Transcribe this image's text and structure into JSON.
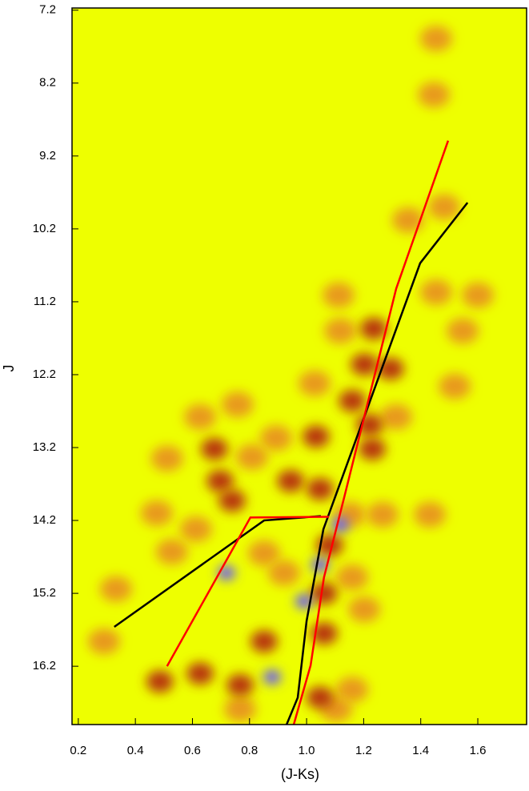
{
  "chart_data": {
    "type": "line",
    "x_label": "(J-Ks)",
    "y_label": "J",
    "xlim": [
      0.178,
      1.771
    ],
    "ylim": [
      17.0,
      7.17
    ],
    "xticks": [
      0.2,
      0.4,
      0.6,
      0.8,
      {
        "value": 1,
        "label": "1.0"
      },
      1.2,
      1.4,
      1.6
    ],
    "yticks": [
      7.2,
      8.2,
      9.2,
      10.2,
      11.2,
      12.2,
      13.2,
      14.2,
      15.2,
      16.2
    ],
    "background": "#eeff00",
    "density": {
      "x": [
        1.454,
        1.446,
        1.482,
        1.356,
        1.112,
        1.454,
        1.6,
        1.235,
        1.118,
        1.547,
        1.202,
        1.294,
        1.519,
        1.028,
        1.16,
        0.758,
        0.627,
        1.221,
        1.314,
        1.23,
        0.893,
        1.033,
        0.677,
        0.511,
        0.809,
        0.697,
        0.944,
        1.047,
        0.739,
        0.475,
        1.151,
        1.266,
        1.432,
        1.118,
        1.081,
        0.612,
        0.528,
        0.851,
        0.719,
        1.047,
        0.921,
        1.16,
        0.332,
        0.991,
        1.061,
        1.202,
        0.29,
        0.851,
        1.061,
        0.879,
        0.627,
        0.486,
        0.767,
        1.16,
        1.047,
        0.767,
        1.104
      ],
      "y": [
        7.59,
        8.36,
        9.9,
        10.08,
        11.11,
        11.07,
        11.11,
        11.57,
        11.6,
        11.6,
        12.06,
        12.12,
        12.36,
        12.32,
        12.56,
        12.61,
        12.78,
        12.89,
        12.78,
        13.22,
        13.07,
        13.05,
        13.22,
        13.35,
        13.33,
        13.66,
        13.66,
        13.77,
        13.93,
        14.1,
        14.12,
        14.12,
        14.12,
        14.26,
        14.54,
        14.32,
        14.63,
        14.65,
        14.92,
        14.81,
        14.92,
        14.98,
        15.14,
        15.31,
        15.2,
        15.42,
        15.86,
        15.86,
        15.75,
        16.35,
        16.3,
        16.41,
        16.46,
        16.52,
        16.63,
        16.79,
        16.79
      ],
      "level": [
        1,
        1,
        1,
        1,
        1,
        1,
        1,
        2,
        1,
        1,
        2,
        2,
        1,
        1,
        2,
        1,
        1,
        2,
        1,
        2,
        1,
        2,
        2,
        1,
        1,
        2,
        2,
        2,
        2,
        1,
        1,
        1,
        1,
        3,
        2,
        1,
        1,
        1,
        3,
        3,
        1,
        1,
        1,
        3,
        2,
        1,
        1,
        2,
        2,
        3,
        2,
        2,
        2,
        1,
        2,
        1,
        1
      ],
      "colors": [
        "#e89a1e",
        "#b8380e",
        "#6655ff"
      ]
    },
    "series": [
      {
        "color": "#000000",
        "x": [
          0.93,
          0.969,
          1.0,
          1.059,
          1.398,
          1.564,
          null,
          0.326,
          0.851,
          1.05
        ],
        "values": [
          17.0,
          16.63,
          15.58,
          14.32,
          10.67,
          9.84,
          null,
          15.66,
          14.2,
          14.14
        ]
      },
      {
        "color": "#ff0000",
        "x": [
          0.955,
          1.014,
          1.061,
          1.132,
          1.314,
          1.496,
          null,
          0.511,
          0.803,
          1.078
        ],
        "values": [
          17.0,
          16.19,
          14.98,
          13.88,
          11.02,
          8.99,
          null,
          16.2,
          14.16,
          14.15
        ]
      }
    ]
  }
}
